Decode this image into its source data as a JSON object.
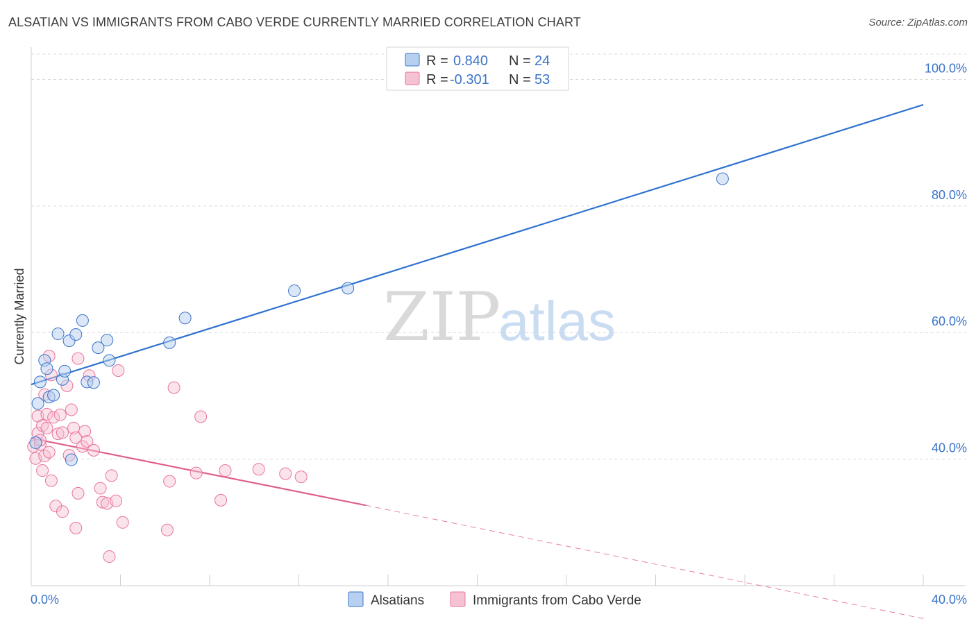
{
  "title": "ALSATIAN VS IMMIGRANTS FROM CABO VERDE CURRENTLY MARRIED CORRELATION CHART",
  "source": "Source: ZipAtlas.com",
  "watermark": {
    "zip": "ZIP",
    "atlas": "atlas"
  },
  "colors": {
    "blue": "#3a73c8",
    "blue_fill": "#b8d0f0",
    "blue_line": "#2f72d0",
    "pink": "#e8749c",
    "pink_fill": "#f6c2d3",
    "pink_line": "#e0608e",
    "grid": "#d9d9d9"
  },
  "legend": {
    "rows": [
      {
        "r_label": "R =",
        "r_value": "0.840",
        "n_label": "N =",
        "n_value": "24"
      },
      {
        "r_label": "R =",
        "r_value": "-0.301",
        "n_label": "N =",
        "n_value": "53"
      }
    ]
  },
  "chart_data": {
    "type": "scatter",
    "ylabel": "Currently Married",
    "xlim": [
      0,
      40
    ],
    "ylim": [
      20,
      104
    ],
    "y_ticks": [
      40,
      60,
      80,
      100
    ],
    "y_tick_labels": [
      "40.0%",
      "60.0%",
      "80.0%",
      "100.0%"
    ],
    "x_tick_labels": [
      "0.0%",
      "40.0%"
    ],
    "grid": true,
    "series": [
      {
        "name": "Alsatians",
        "color": "#3a73c8",
        "trend": {
          "x0": 0,
          "y0": 51.8,
          "x1": 40,
          "y1": 96.0
        },
        "points": [
          [
            0.3,
            48.8
          ],
          [
            0.4,
            52.2
          ],
          [
            0.6,
            55.6
          ],
          [
            0.7,
            54.3
          ],
          [
            0.8,
            49.8
          ],
          [
            1.0,
            50.1
          ],
          [
            1.2,
            59.8
          ],
          [
            1.4,
            52.6
          ],
          [
            1.5,
            53.9
          ],
          [
            1.7,
            58.7
          ],
          [
            2.0,
            59.7
          ],
          [
            2.3,
            61.9
          ],
          [
            2.5,
            52.2
          ],
          [
            2.8,
            52.1
          ],
          [
            3.0,
            57.6
          ],
          [
            3.4,
            58.8
          ],
          [
            3.5,
            55.6
          ],
          [
            6.2,
            58.4
          ],
          [
            6.9,
            62.3
          ],
          [
            11.8,
            66.6
          ],
          [
            14.2,
            67.0
          ],
          [
            31.0,
            84.3
          ],
          [
            0.2,
            42.6
          ],
          [
            1.8,
            39.9
          ]
        ]
      },
      {
        "name": "Immigrants from Cabo Verde",
        "color": "#e8749c",
        "trend": {
          "x0": 0,
          "y0": 43.3,
          "x1": 15.0,
          "y1": 32.7,
          "dash_x1": 40,
          "dash_y1": 14.8
        },
        "points": [
          [
            0.1,
            42.0
          ],
          [
            0.2,
            40.1
          ],
          [
            0.3,
            44.1
          ],
          [
            0.3,
            46.8
          ],
          [
            0.4,
            42.3
          ],
          [
            0.5,
            45.3
          ],
          [
            0.5,
            38.2
          ],
          [
            0.6,
            50.2
          ],
          [
            0.6,
            40.5
          ],
          [
            0.7,
            47.1
          ],
          [
            0.7,
            44.9
          ],
          [
            0.8,
            56.3
          ],
          [
            0.8,
            41.1
          ],
          [
            0.9,
            53.3
          ],
          [
            0.9,
            36.6
          ],
          [
            1.0,
            46.6
          ],
          [
            1.1,
            32.6
          ],
          [
            1.2,
            44.0
          ],
          [
            1.3,
            47.0
          ],
          [
            1.4,
            44.2
          ],
          [
            1.4,
            31.7
          ],
          [
            1.6,
            51.6
          ],
          [
            1.7,
            40.6
          ],
          [
            1.8,
            47.8
          ],
          [
            1.9,
            44.9
          ],
          [
            2.0,
            43.4
          ],
          [
            2.1,
            34.6
          ],
          [
            2.3,
            42.0
          ],
          [
            2.4,
            44.4
          ],
          [
            2.5,
            42.8
          ],
          [
            2.8,
            41.4
          ],
          [
            3.1,
            35.4
          ],
          [
            3.2,
            33.2
          ],
          [
            3.4,
            33.0
          ],
          [
            3.6,
            37.4
          ],
          [
            3.8,
            33.4
          ],
          [
            3.9,
            54.0
          ],
          [
            4.1,
            30.0
          ],
          [
            2.6,
            53.2
          ],
          [
            2.1,
            55.9
          ],
          [
            6.2,
            36.5
          ],
          [
            6.4,
            51.3
          ],
          [
            7.4,
            37.8
          ],
          [
            7.6,
            46.7
          ],
          [
            8.5,
            33.5
          ],
          [
            8.7,
            38.2
          ],
          [
            10.2,
            38.4
          ],
          [
            11.4,
            37.7
          ],
          [
            12.1,
            37.2
          ],
          [
            2.0,
            29.1
          ],
          [
            3.5,
            24.6
          ],
          [
            6.1,
            28.8
          ],
          [
            0.4,
            43.0
          ]
        ]
      }
    ]
  },
  "bottom_legend": [
    {
      "label": "Alsatians"
    },
    {
      "label": "Immigrants from Cabo Verde"
    }
  ]
}
